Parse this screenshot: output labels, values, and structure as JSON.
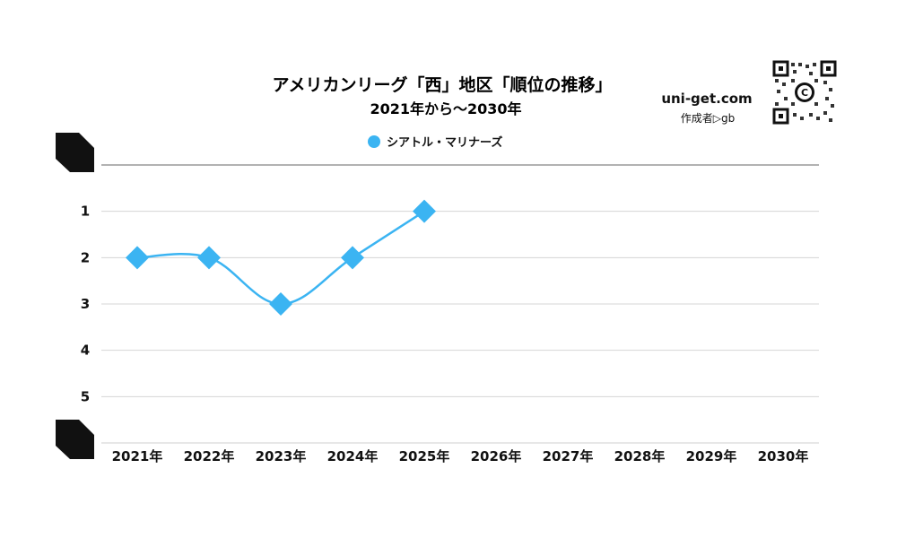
{
  "chart_data": {
    "type": "line",
    "title": "アメリカンリーグ「西」地区「順位の推移」",
    "subtitle": "2021年から～2030年",
    "xlabel": "",
    "ylabel": "",
    "categories": [
      "2021年",
      "2022年",
      "2023年",
      "2024年",
      "2025年",
      "2026年",
      "2027年",
      "2028年",
      "2029年",
      "2030年"
    ],
    "series": [
      {
        "name": "シアトル・マリナーズ",
        "values": [
          2,
          2,
          3,
          2,
          1,
          null,
          null,
          null,
          null,
          null
        ],
        "color": "#3bb4f2",
        "marker": "diamond",
        "smooth": true
      }
    ],
    "y_ticks": [
      "1",
      "2",
      "3",
      "4",
      "5"
    ],
    "ylim": [
      0,
      6
    ],
    "y_reversed": true,
    "grid": true,
    "legend_position": "top-center"
  },
  "branding": {
    "site": "uni-get.com",
    "credit": "作成者▷gb",
    "qr_icon": "qr-code-icon"
  }
}
